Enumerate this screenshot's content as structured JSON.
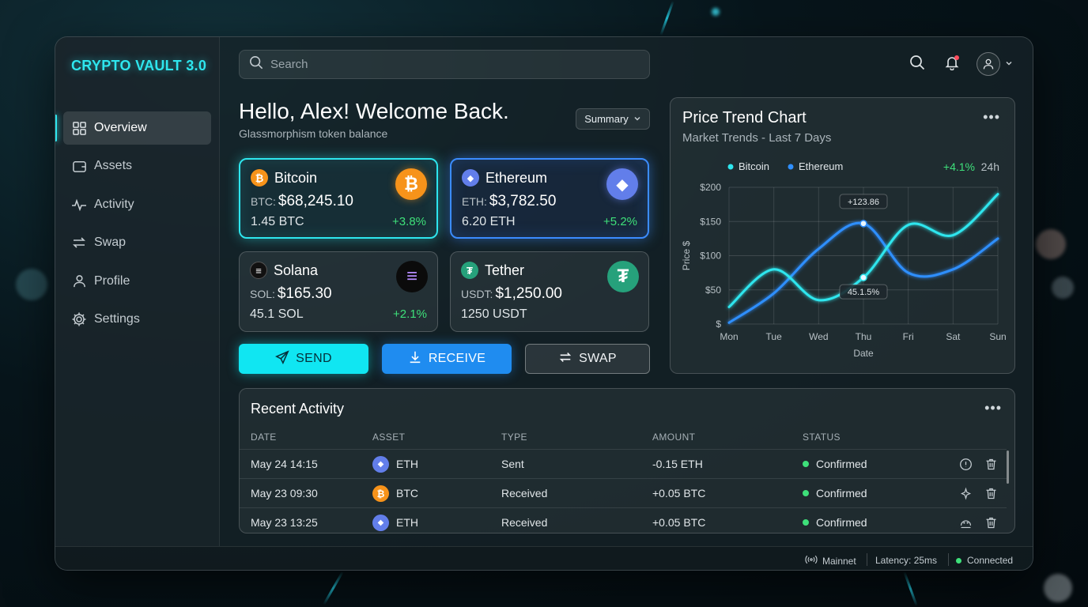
{
  "app": {
    "title": "CRYPTO VAULT 3.0",
    "accent": "#2ee6ee"
  },
  "sidebar": {
    "items": [
      {
        "label": "Overview",
        "icon": "grid-icon",
        "active": true
      },
      {
        "label": "Assets",
        "icon": "wallet-icon",
        "active": false
      },
      {
        "label": "Activity",
        "icon": "pulse-icon",
        "active": false
      },
      {
        "label": "Swap",
        "icon": "swap-icon",
        "active": false
      },
      {
        "label": "Profile",
        "icon": "user-icon",
        "active": false
      },
      {
        "label": "Settings",
        "icon": "gear-icon",
        "active": false
      }
    ]
  },
  "search": {
    "placeholder": "Search",
    "value": ""
  },
  "header": {
    "greeting": "Hello, Alex! Welcome Back.",
    "subtitle": "Glassmorphism token balance",
    "summary_label": "Summary"
  },
  "cards": [
    {
      "name": "Bitcoin",
      "symbol_label": "BTC:",
      "price": "$68,245.10",
      "holding": "1.45 BTC",
      "change": "+3.8%",
      "color": "#f7931a",
      "glyph": "₿",
      "style": "cyan"
    },
    {
      "name": "Ethereum",
      "symbol_label": "ETH:",
      "price": "$3,782.50",
      "holding": "6.20 ETH",
      "change": "+5.2%",
      "color": "#627eea",
      "glyph": "◆",
      "style": "blue"
    },
    {
      "name": "Solana",
      "symbol_label": "SOL:",
      "price": "$165.30",
      "holding": "45.1 SOL",
      "change": "+2.1%",
      "color": "#111111",
      "glyph": "≡",
      "style": "plain"
    },
    {
      "name": "Tether",
      "symbol_label": "USDT:",
      "price": "$1,250.00",
      "holding": "1250 USDT",
      "change": "",
      "color": "#26a17b",
      "glyph": "₮",
      "style": "plain"
    }
  ],
  "actions": {
    "send": "SEND",
    "receive": "RECEIVE",
    "swap": "SWAP"
  },
  "chart_panel": {
    "title": "Price Trend Chart",
    "subtitle": "Market Trends - Last 7 Days",
    "change_value": "+4.1%",
    "change_period": "24h",
    "annotation_top": "+123.86",
    "annotation_bottom": "45.1.5%"
  },
  "chart_data": {
    "type": "line",
    "categories": [
      "Mon",
      "Tue",
      "Wed",
      "Thu",
      "Fri",
      "Sat",
      "Sun"
    ],
    "series": [
      {
        "name": "Bitcoin",
        "color": "#2ee6ee",
        "values": [
          25,
          80,
          35,
          68,
          145,
          130,
          190
        ]
      },
      {
        "name": "Ethereum",
        "color": "#2f8fff",
        "values": [
          2,
          45,
          110,
          147,
          75,
          80,
          125
        ]
      }
    ],
    "ylim": [
      0,
      200
    ],
    "yticks": [
      0,
      50,
      100,
      150,
      200
    ],
    "ytick_labels": [
      "$",
      "$50",
      "$100",
      "$150",
      "$200"
    ],
    "xlabel": "Date",
    "ylabel": "Price $",
    "grid": true,
    "legend": "top-left"
  },
  "activity": {
    "title": "Recent Activity",
    "columns": [
      "DATE",
      "ASSET",
      "TYPE",
      "AMOUNT",
      "STATUS"
    ],
    "rows": [
      {
        "date": "May 24 14:15",
        "asset": "ETH",
        "asset_color": "#627eea",
        "asset_glyph": "◆",
        "type": "Sent",
        "amount": "-0.15 ETH",
        "status": "Confirmed",
        "icon": "info-icon"
      },
      {
        "date": "May 23 09:30",
        "asset": "BTC",
        "asset_color": "#f7931a",
        "asset_glyph": "₿",
        "type": "Received",
        "amount": "+0.05 BTC",
        "status": "Confirmed",
        "icon": "sparkle-icon"
      },
      {
        "date": "May 23 13:25",
        "asset": "ETH",
        "asset_color": "#627eea",
        "asset_glyph": "◆",
        "type": "Received",
        "amount": "+0.05 BTC",
        "status": "Confirmed",
        "icon": "face-icon"
      }
    ]
  },
  "statusbar": {
    "network": "Mainnet",
    "latency": "Latency: 25ms",
    "connection": "Connected"
  }
}
